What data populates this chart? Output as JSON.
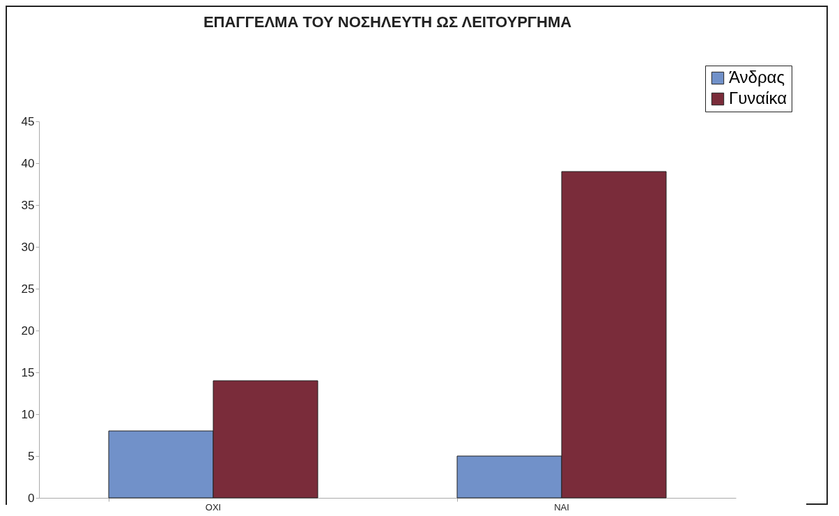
{
  "chart_data": {
    "type": "bar",
    "title": "ΕΠΑΓΓΕΛΜΑ ΤΟΥ ΝΟΣΗΛΕΥΤΗ ΩΣ ΛΕΙΤΟΥΡΓΗΜΑ",
    "categories": [
      "ΟΧΙ",
      "ΝΑΙ"
    ],
    "series": [
      {
        "name": "Άνδρας",
        "color": "#7191c9",
        "values": [
          8,
          5
        ]
      },
      {
        "name": "Γυναίκα",
        "color": "#7a2c3a",
        "values": [
          14,
          39
        ]
      }
    ],
    "ylim": [
      0,
      45
    ],
    "yticks": [
      0,
      5,
      10,
      15,
      20,
      25,
      30,
      35,
      40,
      45
    ],
    "grid": false,
    "legend": "top right"
  }
}
